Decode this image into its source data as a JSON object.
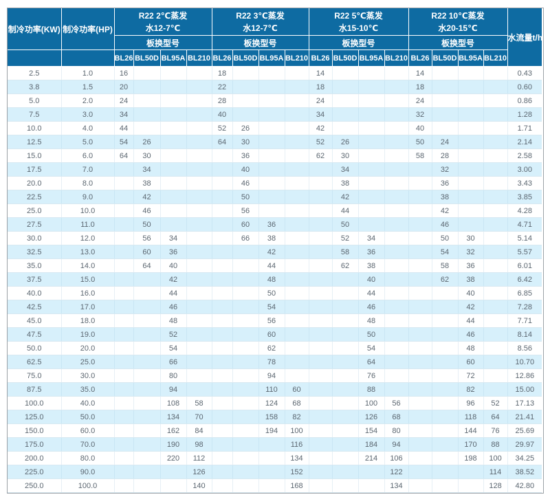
{
  "table": {
    "header": {
      "col_kw": "制冷功率(KW)",
      "col_hp": "制冷功率(HP)",
      "col_flow": "水流量t/h",
      "groups": [
        {
          "title_line1": "R22 2℃蒸发",
          "title_line2": "水12-7℃",
          "subtitle": "板换型号",
          "models": [
            "BL26",
            "BL50D",
            "BL95A",
            "BL210"
          ]
        },
        {
          "title_line1": "R22 3℃蒸发",
          "title_line2": "水12-7℃",
          "subtitle": "板换型号",
          "models": [
            "BL26",
            "BL50D",
            "BL95A",
            "BL210"
          ]
        },
        {
          "title_line1": "R22 5℃蒸发",
          "title_line2": "水15-10℃",
          "subtitle": "板换型号",
          "models": [
            "BL26",
            "BL50D",
            "BL95A",
            "BL210"
          ]
        },
        {
          "title_line1": "R22 10℃蒸发",
          "title_line2": "水20-15℃",
          "subtitle": "板换型号",
          "models": [
            "BL26",
            "BL50D",
            "BL95A",
            "BL210"
          ]
        }
      ]
    },
    "rows": [
      {
        "kw": "2.5",
        "hp": "1.0",
        "cells": [
          "16",
          "",
          "",
          "",
          "18",
          "",
          "",
          "",
          "14",
          "",
          "",
          "",
          "14",
          "",
          "",
          ""
        ],
        "flow": "0.43"
      },
      {
        "kw": "3.8",
        "hp": "1.5",
        "cells": [
          "20",
          "",
          "",
          "",
          "22",
          "",
          "",
          "",
          "18",
          "",
          "",
          "",
          "18",
          "",
          "",
          ""
        ],
        "flow": "0.60"
      },
      {
        "kw": "5.0",
        "hp": "2.0",
        "cells": [
          "24",
          "",
          "",
          "",
          "28",
          "",
          "",
          "",
          "24",
          "",
          "",
          "",
          "24",
          "",
          "",
          ""
        ],
        "flow": "0.86"
      },
      {
        "kw": "7.5",
        "hp": "3.0",
        "cells": [
          "34",
          "",
          "",
          "",
          "40",
          "",
          "",
          "",
          "34",
          "",
          "",
          "",
          "32",
          "",
          "",
          ""
        ],
        "flow": "1.28"
      },
      {
        "kw": "10.0",
        "hp": "4.0",
        "cells": [
          "44",
          "",
          "",
          "",
          "52",
          "26",
          "",
          "",
          "42",
          "",
          "",
          "",
          "40",
          "",
          "",
          ""
        ],
        "flow": "1.71"
      },
      {
        "kw": "12.5",
        "hp": "5.0",
        "cells": [
          "54",
          "26",
          "",
          "",
          "64",
          "30",
          "",
          "",
          "52",
          "26",
          "",
          "",
          "50",
          "24",
          "",
          ""
        ],
        "flow": "2.14"
      },
      {
        "kw": "15.0",
        "hp": "6.0",
        "cells": [
          "64",
          "30",
          "",
          "",
          "",
          "36",
          "",
          "",
          "62",
          "30",
          "",
          "",
          "58",
          "28",
          "",
          ""
        ],
        "flow": "2.58"
      },
      {
        "kw": "17.5",
        "hp": "7.0",
        "cells": [
          "",
          "34",
          "",
          "",
          "",
          "40",
          "",
          "",
          "",
          "34",
          "",
          "",
          "",
          "32",
          "",
          ""
        ],
        "flow": "3.00"
      },
      {
        "kw": "20.0",
        "hp": "8.0",
        "cells": [
          "",
          "38",
          "",
          "",
          "",
          "46",
          "",
          "",
          "",
          "38",
          "",
          "",
          "",
          "36",
          "",
          ""
        ],
        "flow": "3.43"
      },
      {
        "kw": "22.5",
        "hp": "9.0",
        "cells": [
          "",
          "42",
          "",
          "",
          "",
          "50",
          "",
          "",
          "",
          "42",
          "",
          "",
          "",
          "38",
          "",
          ""
        ],
        "flow": "3.85"
      },
      {
        "kw": "25.0",
        "hp": "10.0",
        "cells": [
          "",
          "46",
          "",
          "",
          "",
          "56",
          "",
          "",
          "",
          "44",
          "",
          "",
          "",
          "42",
          "",
          ""
        ],
        "flow": "4.28"
      },
      {
        "kw": "27.5",
        "hp": "11.0",
        "cells": [
          "",
          "50",
          "",
          "",
          "",
          "60",
          "36",
          "",
          "",
          "50",
          "",
          "",
          "",
          "46",
          "",
          ""
        ],
        "flow": "4.71"
      },
      {
        "kw": "30.0",
        "hp": "12.0",
        "cells": [
          "",
          "56",
          "34",
          "",
          "",
          "66",
          "38",
          "",
          "",
          "52",
          "34",
          "",
          "",
          "50",
          "30",
          ""
        ],
        "flow": "5.14"
      },
      {
        "kw": "32.5",
        "hp": "13.0",
        "cells": [
          "",
          "60",
          "36",
          "",
          "",
          "",
          "42",
          "",
          "",
          "58",
          "36",
          "",
          "",
          "54",
          "32",
          ""
        ],
        "flow": "5.57"
      },
      {
        "kw": "35.0",
        "hp": "14.0",
        "cells": [
          "",
          "64",
          "40",
          "",
          "",
          "",
          "44",
          "",
          "",
          "62",
          "38",
          "",
          "",
          "58",
          "36",
          ""
        ],
        "flow": "6.01"
      },
      {
        "kw": "37.5",
        "hp": "15.0",
        "cells": [
          "",
          "",
          "42",
          "",
          "",
          "",
          "48",
          "",
          "",
          "",
          "40",
          "",
          "",
          "62",
          "38",
          ""
        ],
        "flow": "6.42"
      },
      {
        "kw": "40.0",
        "hp": "16.0",
        "cells": [
          "",
          "",
          "44",
          "",
          "",
          "",
          "50",
          "",
          "",
          "",
          "44",
          "",
          "",
          "",
          "40",
          ""
        ],
        "flow": "6.85"
      },
      {
        "kw": "42.5",
        "hp": "17.0",
        "cells": [
          "",
          "",
          "46",
          "",
          "",
          "",
          "54",
          "",
          "",
          "",
          "46",
          "",
          "",
          "",
          "42",
          ""
        ],
        "flow": "7.28"
      },
      {
        "kw": "45.0",
        "hp": "18.0",
        "cells": [
          "",
          "",
          "48",
          "",
          "",
          "",
          "56",
          "",
          "",
          "",
          "48",
          "",
          "",
          "",
          "44",
          ""
        ],
        "flow": "7.71"
      },
      {
        "kw": "47.5",
        "hp": "19.0",
        "cells": [
          "",
          "",
          "52",
          "",
          "",
          "",
          "60",
          "",
          "",
          "",
          "50",
          "",
          "",
          "",
          "46",
          ""
        ],
        "flow": "8.14"
      },
      {
        "kw": "50.0",
        "hp": "20.0",
        "cells": [
          "",
          "",
          "54",
          "",
          "",
          "",
          "62",
          "",
          "",
          "",
          "54",
          "",
          "",
          "",
          "48",
          ""
        ],
        "flow": "8.56"
      },
      {
        "kw": "62.5",
        "hp": "25.0",
        "cells": [
          "",
          "",
          "66",
          "",
          "",
          "",
          "78",
          "",
          "",
          "",
          "64",
          "",
          "",
          "",
          "60",
          ""
        ],
        "flow": "10.70"
      },
      {
        "kw": "75.0",
        "hp": "30.0",
        "cells": [
          "",
          "",
          "80",
          "",
          "",
          "",
          "94",
          "",
          "",
          "",
          "76",
          "",
          "",
          "",
          "72",
          ""
        ],
        "flow": "12.86"
      },
      {
        "kw": "87.5",
        "hp": "35.0",
        "cells": [
          "",
          "",
          "94",
          "",
          "",
          "",
          "110",
          "60",
          "",
          "",
          "88",
          "",
          "",
          "",
          "82",
          ""
        ],
        "flow": "15.00"
      },
      {
        "kw": "100.0",
        "hp": "40.0",
        "cells": [
          "",
          "",
          "108",
          "58",
          "",
          "",
          "124",
          "68",
          "",
          "",
          "100",
          "56",
          "",
          "",
          "96",
          "52"
        ],
        "flow": "17.13"
      },
      {
        "kw": "125.0",
        "hp": "50.0",
        "cells": [
          "",
          "",
          "134",
          "70",
          "",
          "",
          "158",
          "82",
          "",
          "",
          "126",
          "68",
          "",
          "",
          "118",
          "64"
        ],
        "flow": "21.41"
      },
      {
        "kw": "150.0",
        "hp": "60.0",
        "cells": [
          "",
          "",
          "162",
          "84",
          "",
          "",
          "194",
          "100",
          "",
          "",
          "154",
          "80",
          "",
          "",
          "144",
          "76"
        ],
        "flow": "25.69"
      },
      {
        "kw": "175.0",
        "hp": "70.0",
        "cells": [
          "",
          "",
          "190",
          "98",
          "",
          "",
          "",
          "116",
          "",
          "",
          "184",
          "94",
          "",
          "",
          "170",
          "88"
        ],
        "flow": "29.97"
      },
      {
        "kw": "200.0",
        "hp": "80.0",
        "cells": [
          "",
          "",
          "220",
          "112",
          "",
          "",
          "",
          "134",
          "",
          "",
          "214",
          "106",
          "",
          "",
          "198",
          "100"
        ],
        "flow": "34.25"
      },
      {
        "kw": "225.0",
        "hp": "90.0",
        "cells": [
          "",
          "",
          "",
          "126",
          "",
          "",
          "",
          "152",
          "",
          "",
          "",
          "122",
          "",
          "",
          "",
          "114"
        ],
        "flow": "38.52"
      },
      {
        "kw": "250.0",
        "hp": "100.0",
        "cells": [
          "",
          "",
          "",
          "140",
          "",
          "",
          "",
          "168",
          "",
          "",
          "",
          "134",
          "",
          "",
          "",
          "128"
        ],
        "flow": "42.80"
      }
    ]
  },
  "colors": {
    "header_bg": "#0e6ba2",
    "header_text": "#ffffff",
    "row_alt_bg": "#d7f0fb",
    "row_bg": "#ffffff",
    "body_text": "#5b6670",
    "outer_border": "#9ba1a6"
  }
}
